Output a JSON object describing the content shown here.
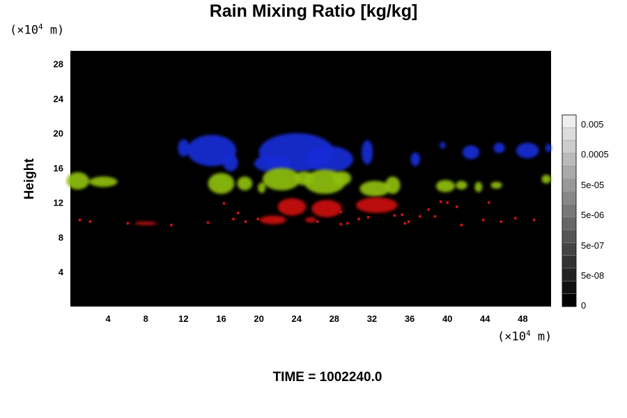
{
  "title": "Rain Mixing Ratio [kg/kg]",
  "y_unit": {
    "prefix": "(×10",
    "exp": "4",
    "suffix": " m)"
  },
  "x_unit": {
    "prefix": "(×10",
    "exp": "4",
    "suffix": " m)"
  },
  "ylabel": "Height",
  "time_label": "TIME = 1002240.0",
  "chart_data": {
    "type": "heatmap",
    "title": "Rain Mixing Ratio [kg/kg]",
    "ylabel": "Height",
    "xlabel": "",
    "x_unit": "×10^4 m",
    "y_unit": "×10^4 m",
    "xlim": [
      0,
      51
    ],
    "ylim": [
      0,
      29.5
    ],
    "xticks": [
      4,
      8,
      12,
      16,
      20,
      24,
      28,
      32,
      36,
      40,
      44,
      48
    ],
    "yticks": [
      4,
      8,
      12,
      16,
      20,
      24,
      28
    ],
    "colorbar": {
      "tick_labels": [
        "0.005",
        "0.0005",
        "5e-05",
        "5e-06",
        "5e-07",
        "5e-08",
        "0"
      ],
      "scale": "log",
      "colors": [
        "#eeeeee",
        "#dddddd",
        "#cccccc",
        "#bbbbbb",
        "#aaaaaa",
        "#999999",
        "#888888",
        "#777777",
        "#666666",
        "#555555",
        "#444444",
        "#333333",
        "#222222",
        "#111111",
        "#000000"
      ]
    },
    "background": "#000000",
    "regions": [
      {
        "layer": "upper",
        "color": "#1a2bd6",
        "y_range": [
          15.5,
          19.5
        ],
        "blobs": [
          [
            12,
            18.3,
            0.6,
            1.0
          ],
          [
            15.0,
            18.0,
            2.6,
            1.8
          ],
          [
            17.0,
            16.6,
            0.8,
            1.0
          ],
          [
            24.0,
            17.8,
            4.0,
            2.2
          ],
          [
            21.5,
            16.5,
            2.0,
            1.0
          ],
          [
            27.5,
            17.0,
            2.5,
            1.5
          ],
          [
            31.5,
            17.8,
            0.6,
            1.4
          ],
          [
            36.6,
            17.0,
            0.5,
            0.8
          ],
          [
            39.5,
            18.6,
            0.3,
            0.4
          ],
          [
            42.5,
            17.8,
            0.9,
            0.8
          ],
          [
            45.5,
            18.3,
            0.6,
            0.6
          ],
          [
            48.5,
            18.0,
            1.2,
            0.9
          ],
          [
            50.7,
            18.3,
            0.3,
            0.5
          ]
        ]
      },
      {
        "layer": "middle",
        "color": "#8fbf10",
        "y_range": [
          12.5,
          15.5
        ],
        "blobs": [
          [
            0.8,
            14.5,
            1.2,
            1.0
          ],
          [
            3.5,
            14.4,
            1.5,
            0.6
          ],
          [
            16.0,
            14.2,
            1.4,
            1.2
          ],
          [
            18.5,
            14.2,
            0.8,
            0.8
          ],
          [
            20.3,
            13.7,
            0.4,
            0.6
          ],
          [
            22.4,
            14.7,
            2.0,
            1.3
          ],
          [
            24.8,
            14.8,
            1.0,
            0.8
          ],
          [
            27.0,
            14.4,
            2.2,
            1.4
          ],
          [
            28.8,
            14.8,
            1.0,
            0.8
          ],
          [
            32.3,
            13.6,
            1.6,
            0.9
          ],
          [
            34.2,
            14.0,
            0.8,
            1.0
          ],
          [
            39.8,
            13.9,
            1.0,
            0.7
          ],
          [
            41.5,
            14.0,
            0.6,
            0.5
          ],
          [
            43.3,
            13.8,
            0.4,
            0.6
          ],
          [
            45.2,
            14.0,
            0.6,
            0.4
          ],
          [
            50.5,
            14.7,
            0.5,
            0.5
          ]
        ]
      },
      {
        "layer": "lower",
        "color": "#cc1111",
        "y_range": [
          9.5,
          12.5
        ],
        "blobs": [
          [
            21.5,
            10.0,
            1.4,
            0.5
          ],
          [
            23.5,
            11.5,
            1.5,
            1.0
          ],
          [
            27.2,
            11.3,
            1.6,
            1.0
          ],
          [
            32.5,
            11.7,
            2.2,
            0.9
          ],
          [
            8.0,
            9.6,
            1.2,
            0.2
          ],
          [
            25.5,
            10.0,
            0.6,
            0.3
          ]
        ]
      }
    ],
    "scatter_points": [
      [
        1.0,
        10.0
      ],
      [
        2.1,
        9.8
      ],
      [
        6.1,
        9.6
      ],
      [
        10.7,
        9.4
      ],
      [
        14.6,
        9.7
      ],
      [
        16.3,
        11.9
      ],
      [
        17.3,
        10.1
      ],
      [
        17.8,
        10.8
      ],
      [
        18.6,
        9.8
      ],
      [
        19.9,
        10.1
      ],
      [
        26.2,
        9.8
      ],
      [
        28.7,
        9.5
      ],
      [
        28.7,
        10.9
      ],
      [
        29.4,
        9.6
      ],
      [
        30.6,
        10.1
      ],
      [
        31.6,
        10.3
      ],
      [
        34.4,
        10.5
      ],
      [
        35.2,
        10.6
      ],
      [
        35.5,
        9.6
      ],
      [
        35.9,
        9.8
      ],
      [
        37.1,
        10.4
      ],
      [
        38.0,
        11.2
      ],
      [
        38.7,
        10.4
      ],
      [
        39.3,
        12.1
      ],
      [
        40.0,
        12.0
      ],
      [
        41.0,
        11.5
      ],
      [
        41.5,
        9.4
      ],
      [
        43.8,
        10.0
      ],
      [
        44.4,
        12.0
      ],
      [
        45.7,
        9.8
      ],
      [
        47.2,
        10.2
      ],
      [
        49.2,
        10.0
      ]
    ]
  }
}
